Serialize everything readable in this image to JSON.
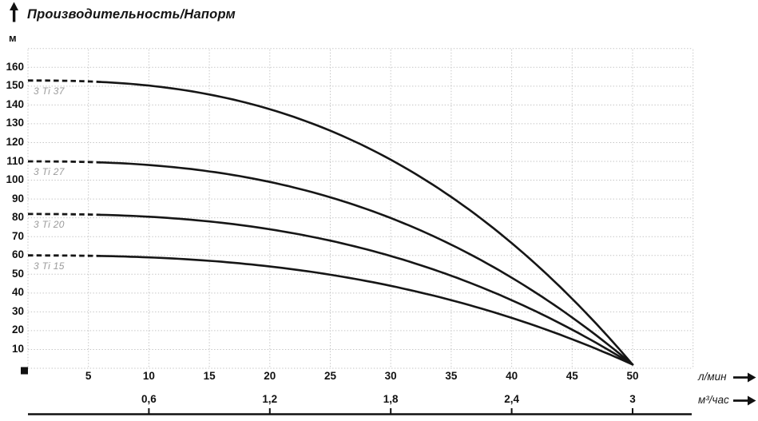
{
  "chart_data": {
    "type": "line",
    "title": "Производительность/Напорм",
    "y_unit": "м",
    "x1_unit": "л/мин",
    "x2_unit": "м³/час",
    "xlim_lmin": [
      0,
      55
    ],
    "ylim_m": [
      0,
      170
    ],
    "grid": true,
    "y_ticks": [
      160,
      150,
      140,
      130,
      120,
      110,
      100,
      90,
      80,
      70,
      60,
      50,
      40,
      30,
      20,
      10
    ],
    "x1_ticks": [
      5,
      10,
      15,
      20,
      25,
      30,
      35,
      40,
      45,
      50
    ],
    "x2_ticks": [
      {
        "q": 10,
        "label": "0,6"
      },
      {
        "q": 20,
        "label": "1,2"
      },
      {
        "q": 30,
        "label": "1,8"
      },
      {
        "q": 40,
        "label": "2,4"
      },
      {
        "q": 50,
        "label": "3"
      }
    ],
    "dashed_until_q": 6,
    "q_max": 50,
    "curve_model": {
      "type": "power",
      "exponent": 2.5,
      "head_end_m": 2
    },
    "series": [
      {
        "name": "3 Ti 37",
        "head_start_m": 153,
        "head_end_m": 2,
        "points": [
          [
            0,
            153
          ],
          [
            5,
            152.2
          ],
          [
            10,
            150.3
          ],
          [
            15,
            145.6
          ],
          [
            20,
            137.7
          ],
          [
            25,
            126.3
          ],
          [
            30,
            110.9
          ],
          [
            35,
            91.1
          ],
          [
            40,
            66.6
          ],
          [
            45,
            37.0
          ],
          [
            50,
            2
          ]
        ]
      },
      {
        "name": "3 Ti 27",
        "head_start_m": 110,
        "head_end_m": 2,
        "points": [
          [
            0,
            110
          ],
          [
            5,
            109.5
          ],
          [
            10,
            108.1
          ],
          [
            15,
            104.7
          ],
          [
            20,
            99.1
          ],
          [
            25,
            90.9
          ],
          [
            30,
            79.9
          ],
          [
            35,
            65.7
          ],
          [
            40,
            48.2
          ],
          [
            45,
            27.0
          ],
          [
            50,
            2
          ]
        ]
      },
      {
        "name": "3 Ti 20",
        "head_start_m": 82,
        "head_end_m": 2,
        "points": [
          [
            0,
            82
          ],
          [
            5,
            81.6
          ],
          [
            10,
            80.6
          ],
          [
            15,
            78.1
          ],
          [
            20,
            73.9
          ],
          [
            25,
            67.9
          ],
          [
            30,
            59.7
          ],
          [
            35,
            49.2
          ],
          [
            40,
            36.2
          ],
          [
            45,
            20.5
          ],
          [
            50,
            2
          ]
        ]
      },
      {
        "name": "3 Ti 15",
        "head_start_m": 60,
        "head_end_m": 2,
        "points": [
          [
            0,
            60
          ],
          [
            5,
            59.7
          ],
          [
            10,
            59.0
          ],
          [
            15,
            57.1
          ],
          [
            20,
            54.1
          ],
          [
            25,
            49.7
          ],
          [
            30,
            43.8
          ],
          [
            35,
            36.2
          ],
          [
            40,
            26.8
          ],
          [
            45,
            15.4
          ],
          [
            50,
            2
          ]
        ]
      }
    ],
    "colors": {
      "curve": "#161616",
      "grid": "#c3c3c3",
      "label_gray": "#9b9b9b",
      "text": "#111111"
    }
  }
}
